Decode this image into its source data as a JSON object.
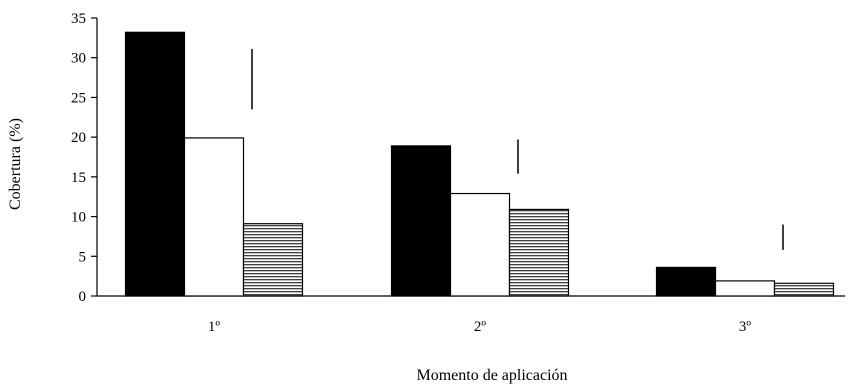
{
  "chart_data": {
    "type": "bar",
    "title": "",
    "xlabel": "Momento de aplicación",
    "ylabel": "Cobertura (%)",
    "ylim": [
      0,
      35
    ],
    "yticks": [
      0,
      5,
      10,
      15,
      20,
      25,
      30,
      35
    ],
    "grid": false,
    "legend": "none",
    "categories": [
      "1º",
      "2º",
      "3º"
    ],
    "series": [
      {
        "values": [
          33.2,
          18.9,
          3.6
        ],
        "fill": "solid",
        "color": "#000000"
      },
      {
        "values": [
          19.9,
          12.9,
          1.9
        ],
        "fill": "empty",
        "color": "#ffffff"
      },
      {
        "values": [
          9.1,
          10.9,
          1.6
        ],
        "fill": "horizontal-lines",
        "color": "#ffffff"
      }
    ],
    "error_marks": [
      {
        "category": "1º",
        "from": 23.5,
        "to": 31.1
      },
      {
        "category": "2º",
        "from": 15.4,
        "to": 19.7
      },
      {
        "category": "3º",
        "from": 5.8,
        "to": 9.0
      }
    ]
  }
}
